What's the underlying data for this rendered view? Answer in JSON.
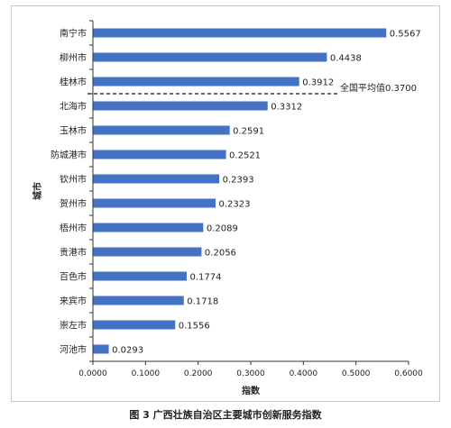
{
  "chart_data": {
    "type": "bar",
    "orientation": "horizontal",
    "categories": [
      "南宁市",
      "柳州市",
      "桂林市",
      "北海市",
      "玉林市",
      "防城港市",
      "钦州市",
      "贺州市",
      "梧州市",
      "贵港市",
      "百色市",
      "来宾市",
      "崇左市",
      "河池市"
    ],
    "values": [
      0.5567,
      0.4438,
      0.3912,
      0.3312,
      0.2591,
      0.2521,
      0.2393,
      0.2323,
      0.2089,
      0.2056,
      0.1774,
      0.1718,
      0.1556,
      0.0293
    ],
    "value_labels": [
      "0.5567",
      "0.4438",
      "0.3912",
      "0.3312",
      "0.2591",
      "0.2521",
      "0.2393",
      "0.2323",
      "0.2089",
      "0.2056",
      "0.1774",
      "0.1718",
      "0.1556",
      "0.0293"
    ],
    "xlabel": "指数",
    "ylabel": "城市",
    "xlim": [
      0,
      0.6
    ],
    "xticks": [
      "0.0000",
      "0.1000",
      "0.2000",
      "0.3000",
      "0.4000",
      "0.5000",
      "0.6000"
    ],
    "grid": false,
    "bar_color": "#4472c4",
    "reference_line": {
      "value": 0.37,
      "label": "全国平均值0.3700",
      "style": "dashed"
    },
    "caption": "图 3 广西壮族自治区主要城市创新服务指数"
  }
}
